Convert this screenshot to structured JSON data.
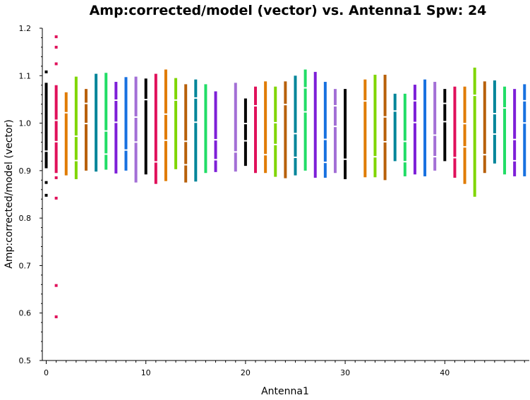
{
  "chart_data": {
    "type": "scatter",
    "title": "Amp:corrected/model (vector) vs. Antenna1 Spw: 24",
    "xlabel": "Antenna1",
    "ylabel": "Amp:corrected/model (vector)",
    "xlim": [
      -0.2,
      48
    ],
    "ylim": [
      0.5,
      1.2
    ],
    "x_ticks": [
      0,
      10,
      20,
      30,
      40
    ],
    "y_ticks": [
      0.5,
      0.6,
      0.7,
      0.8,
      0.9,
      1.0,
      1.1,
      1.2
    ],
    "x_tick_labels": [
      "0",
      "10",
      "20",
      "30",
      "40"
    ],
    "y_tick_labels": [
      "0.5",
      "0.6",
      "0.7",
      "0.8",
      "0.9",
      "1.0",
      "1.1",
      "1.2"
    ],
    "grid": false,
    "legend": "none",
    "antennas": [
      {
        "x": 0,
        "min": 0.905,
        "max": 1.085,
        "extra": [
          1.108,
          0.875,
          0.848
        ],
        "color": "#000000"
      },
      {
        "x": 1,
        "min": 0.895,
        "max": 1.08,
        "extra": [
          1.182,
          1.16,
          1.125,
          0.885,
          0.842,
          0.658,
          0.592
        ],
        "color": "#e0105a"
      },
      {
        "x": 2,
        "min": 0.89,
        "max": 1.065,
        "extra": [],
        "color": "#e07b00"
      },
      {
        "x": 3,
        "min": 0.882,
        "max": 1.098,
        "extra": [],
        "color": "#7fd600"
      },
      {
        "x": 4,
        "min": 0.9,
        "max": 1.072,
        "extra": [],
        "color": "#b8600a"
      },
      {
        "x": 5,
        "min": 0.898,
        "max": 1.104,
        "extra": [],
        "color": "#00859a"
      },
      {
        "x": 6,
        "min": 0.902,
        "max": 1.106,
        "extra": [],
        "color": "#22dd66"
      },
      {
        "x": 7,
        "min": 0.894,
        "max": 1.087,
        "extra": [],
        "color": "#7d1fd8"
      },
      {
        "x": 8,
        "min": 0.9,
        "max": 1.097,
        "extra": [],
        "color": "#1771e0"
      },
      {
        "x": 9,
        "min": 0.875,
        "max": 1.098,
        "extra": [],
        "color": "#a36fd6"
      },
      {
        "x": 10,
        "min": 0.892,
        "max": 1.094,
        "extra": [],
        "color": "#000000"
      },
      {
        "x": 11,
        "min": 0.872,
        "max": 1.104,
        "extra": [],
        "color": "#e0105a"
      },
      {
        "x": 12,
        "min": 0.878,
        "max": 1.113,
        "extra": [],
        "color": "#e07b00"
      },
      {
        "x": 13,
        "min": 0.903,
        "max": 1.095,
        "extra": [],
        "color": "#7fd600"
      },
      {
        "x": 14,
        "min": 0.875,
        "max": 1.082,
        "extra": [],
        "color": "#b8600a"
      },
      {
        "x": 15,
        "min": 0.877,
        "max": 1.092,
        "extra": [],
        "color": "#00859a"
      },
      {
        "x": 16,
        "min": 0.895,
        "max": 1.082,
        "extra": [],
        "color": "#22dd66"
      },
      {
        "x": 17,
        "min": 0.897,
        "max": 1.067,
        "extra": [],
        "color": "#7d1fd8"
      },
      {
        "x": 19,
        "min": 0.898,
        "max": 1.085,
        "extra": [],
        "color": "#a36fd6"
      },
      {
        "x": 20,
        "min": 0.91,
        "max": 1.052,
        "extra": [],
        "color": "#000000"
      },
      {
        "x": 21,
        "min": 0.895,
        "max": 1.077,
        "extra": [],
        "color": "#e0105a"
      },
      {
        "x": 22,
        "min": 0.895,
        "max": 1.088,
        "extra": [],
        "color": "#e07b00"
      },
      {
        "x": 23,
        "min": 0.887,
        "max": 1.077,
        "extra": [],
        "color": "#7fd600"
      },
      {
        "x": 24,
        "min": 0.884,
        "max": 1.088,
        "extra": [],
        "color": "#b8600a"
      },
      {
        "x": 25,
        "min": 0.89,
        "max": 1.1,
        "extra": [],
        "color": "#00859a"
      },
      {
        "x": 26,
        "min": 0.9,
        "max": 1.113,
        "extra": [],
        "color": "#22dd66"
      },
      {
        "x": 27,
        "min": 0.885,
        "max": 1.108,
        "extra": [],
        "color": "#7d1fd8"
      },
      {
        "x": 28,
        "min": 0.885,
        "max": 1.087,
        "extra": [],
        "color": "#1771e0"
      },
      {
        "x": 29,
        "min": 0.895,
        "max": 1.072,
        "extra": [],
        "color": "#a36fd6"
      },
      {
        "x": 30,
        "min": 0.882,
        "max": 1.072,
        "extra": [],
        "color": "#000000"
      },
      {
        "x": 32,
        "min": 0.886,
        "max": 1.092,
        "extra": [],
        "color": "#e07b00"
      },
      {
        "x": 33,
        "min": 0.886,
        "max": 1.102,
        "extra": [],
        "color": "#7fd600"
      },
      {
        "x": 34,
        "min": 0.88,
        "max": 1.102,
        "extra": [],
        "color": "#b8600a"
      },
      {
        "x": 35,
        "min": 0.92,
        "max": 1.062,
        "extra": [],
        "color": "#00859a"
      },
      {
        "x": 36,
        "min": 0.888,
        "max": 1.062,
        "extra": [],
        "color": "#22dd66"
      },
      {
        "x": 37,
        "min": 0.892,
        "max": 1.081,
        "extra": [],
        "color": "#7d1fd8"
      },
      {
        "x": 38,
        "min": 0.888,
        "max": 1.092,
        "extra": [],
        "color": "#1771e0"
      },
      {
        "x": 39,
        "min": 0.9,
        "max": 1.087,
        "extra": [],
        "color": "#a36fd6"
      },
      {
        "x": 40,
        "min": 0.92,
        "max": 1.072,
        "extra": [],
        "color": "#000000"
      },
      {
        "x": 41,
        "min": 0.885,
        "max": 1.077,
        "extra": [],
        "color": "#e0105a"
      },
      {
        "x": 42,
        "min": 0.872,
        "max": 1.077,
        "extra": [],
        "color": "#e07b00"
      },
      {
        "x": 43,
        "min": 0.845,
        "max": 1.117,
        "extra": [],
        "color": "#7fd600"
      },
      {
        "x": 44,
        "min": 0.895,
        "max": 1.088,
        "extra": [],
        "color": "#b8600a"
      },
      {
        "x": 45,
        "min": 0.915,
        "max": 1.09,
        "extra": [],
        "color": "#00859a"
      },
      {
        "x": 46,
        "min": 0.892,
        "max": 1.077,
        "extra": [],
        "color": "#22dd66"
      },
      {
        "x": 47,
        "min": 0.888,
        "max": 1.072,
        "extra": [],
        "color": "#7d1fd8"
      },
      {
        "x": 48,
        "min": 0.888,
        "max": 1.082,
        "extra": [],
        "color": "#1771e0"
      }
    ]
  }
}
